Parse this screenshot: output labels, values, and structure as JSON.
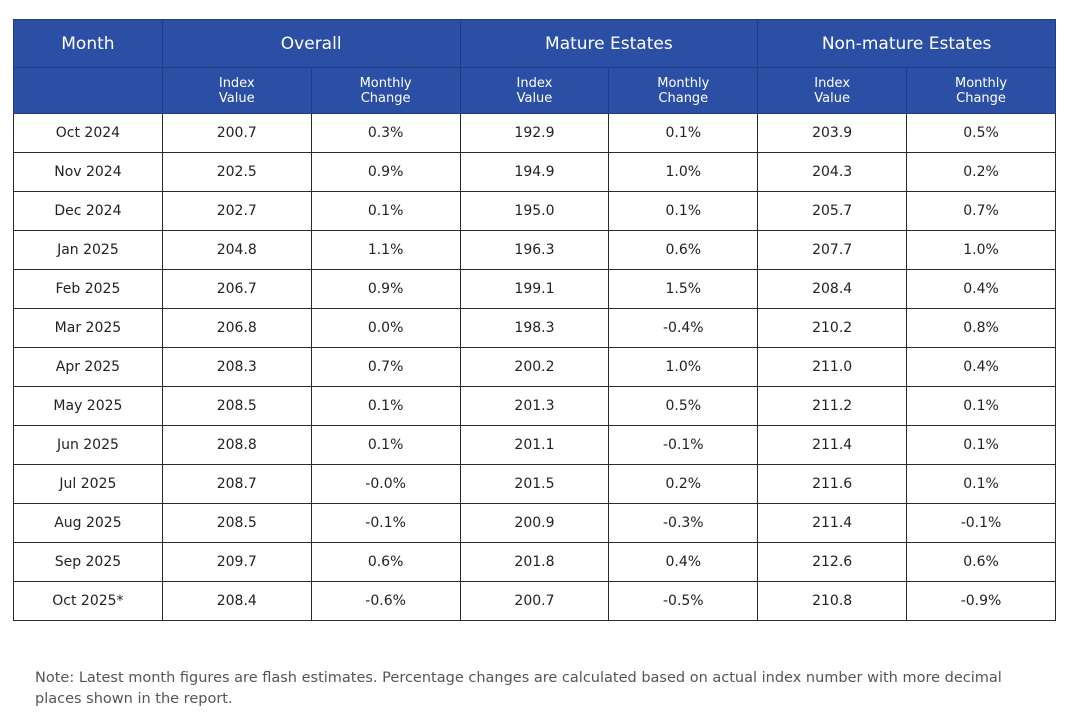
{
  "table": {
    "group_headers": [
      "Month",
      "Overall",
      "Mature Estates",
      "Non-mature Estates"
    ],
    "sub_headers": [
      "Index Value",
      "Monthly Change",
      "Index Value",
      "Monthly Change",
      "Index Value",
      "Monthly Change"
    ],
    "rows": [
      [
        "Oct 2024",
        "200.7",
        "0.3%",
        "192.9",
        "0.1%",
        "203.9",
        "0.5%"
      ],
      [
        "Nov 2024",
        "202.5",
        "0.9%",
        "194.9",
        "1.0%",
        "204.3",
        "0.2%"
      ],
      [
        "Dec 2024",
        "202.7",
        "0.1%",
        "195.0",
        "0.1%",
        "205.7",
        "0.7%"
      ],
      [
        "Jan 2025",
        "204.8",
        "1.1%",
        "196.3",
        "0.6%",
        "207.7",
        "1.0%"
      ],
      [
        "Feb 2025",
        "206.7",
        "0.9%",
        "199.1",
        "1.5%",
        "208.4",
        "0.4%"
      ],
      [
        "Mar 2025",
        "206.8",
        "0.0%",
        "198.3",
        "-0.4%",
        "210.2",
        "0.8%"
      ],
      [
        "Apr 2025",
        "208.3",
        "0.7%",
        "200.2",
        "1.0%",
        "211.0",
        "0.4%"
      ],
      [
        "May 2025",
        "208.5",
        "0.1%",
        "201.3",
        "0.5%",
        "211.2",
        "0.1%"
      ],
      [
        "Jun 2025",
        "208.8",
        "0.1%",
        "201.1",
        "-0.1%",
        "211.4",
        "0.1%"
      ],
      [
        "Jul 2025",
        "208.7",
        "-0.0%",
        "201.5",
        "0.2%",
        "211.6",
        "0.1%"
      ],
      [
        "Aug 2025",
        "208.5",
        "-0.1%",
        "200.9",
        "-0.3%",
        "211.4",
        "-0.1%"
      ],
      [
        "Sep 2025",
        "209.7",
        "0.6%",
        "201.8",
        "0.4%",
        "212.6",
        "0.6%"
      ],
      [
        "Oct 2025*",
        "208.4",
        "-0.6%",
        "200.7",
        "-0.5%",
        "210.8",
        "-0.9%"
      ]
    ]
  },
  "note": "Note: Latest month figures are flash estimates. Percentage changes are calculated based on actual index number with more decimal places shown in the report."
}
